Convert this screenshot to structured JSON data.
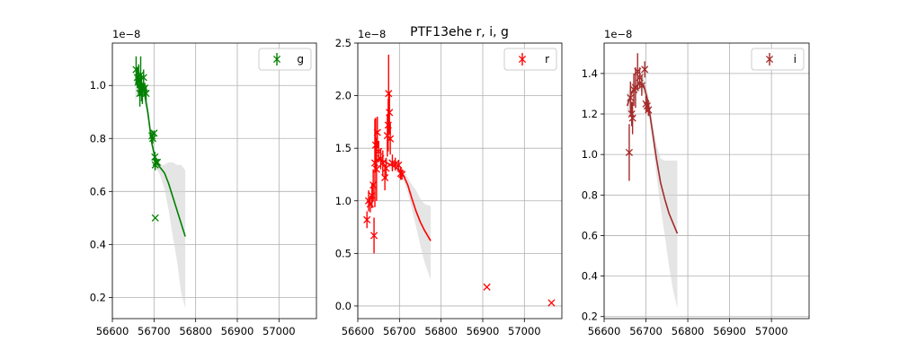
{
  "figure_title": "PTF13ehe  r, i, g",
  "chart_data": [
    {
      "type": "scatter",
      "band": "g",
      "color": "#008000",
      "offset_label": "1e−8",
      "xlim": [
        56600,
        57090
      ],
      "ylim": [
        0.12,
        1.16
      ],
      "xticks": [
        56600,
        56700,
        56800,
        56900,
        57000
      ],
      "xtick_labels": [
        "56600",
        "56700",
        "56800",
        "56900",
        "57000"
      ],
      "yticks": [
        0.2,
        0.4,
        0.6,
        0.8,
        1.0
      ],
      "ytick_labels": [
        "0.2",
        "0.4",
        "0.6",
        "0.8",
        "1.0"
      ],
      "legend": {
        "label": "g",
        "position": "top-right"
      },
      "grid": true,
      "points": [
        {
          "x": 56657,
          "y": 1.06,
          "err": 0.05
        },
        {
          "x": 56660,
          "y": 1.03,
          "err": 0.04
        },
        {
          "x": 56663,
          "y": 1.02,
          "err": 0.06
        },
        {
          "x": 56666,
          "y": 0.97,
          "err": 0.05
        },
        {
          "x": 56668,
          "y": 1.04,
          "err": 0.07
        },
        {
          "x": 56670,
          "y": 0.99,
          "err": 0.05
        },
        {
          "x": 56672,
          "y": 0.97,
          "err": 0.04
        },
        {
          "x": 56675,
          "y": 1.03,
          "err": 0.03
        },
        {
          "x": 56678,
          "y": 0.99,
          "err": 0.02
        },
        {
          "x": 56681,
          "y": 0.97,
          "err": 0.03
        },
        {
          "x": 56695,
          "y": 0.81,
          "err": 0.02
        },
        {
          "x": 56697,
          "y": 0.8,
          "err": 0.02
        },
        {
          "x": 56700,
          "y": 0.82,
          "err": 0.01
        },
        {
          "x": 56702,
          "y": 0.73,
          "err": 0.02
        },
        {
          "x": 56703,
          "y": 0.7,
          "err": 0.02
        },
        {
          "x": 56705,
          "y": 0.71,
          "err": 0.01
        },
        {
          "x": 56708,
          "y": 0.71,
          "err": 0.01
        },
        {
          "x": 56703,
          "y": 0.5,
          "err": 0
        }
      ],
      "fit": {
        "x": [
          56655,
          56665,
          56675,
          56685,
          56695,
          56705,
          56715,
          56725,
          56735,
          56745,
          56755,
          56765,
          56775
        ],
        "y": [
          1.0,
          1.03,
          0.99,
          0.9,
          0.78,
          0.71,
          0.69,
          0.67,
          0.63,
          0.58,
          0.53,
          0.48,
          0.43
        ],
        "lower": [
          0.94,
          0.99,
          0.96,
          0.87,
          0.76,
          0.69,
          0.66,
          0.61,
          0.53,
          0.43,
          0.34,
          0.22,
          0.16
        ],
        "upper": [
          1.06,
          1.06,
          1.02,
          0.93,
          0.8,
          0.72,
          0.7,
          0.7,
          0.71,
          0.71,
          0.7,
          0.7,
          0.68
        ]
      }
    },
    {
      "type": "scatter",
      "band": "r",
      "color": "#ff0000",
      "offset_label": "1e−8",
      "xlim": [
        56600,
        57090
      ],
      "ylim": [
        -0.12,
        2.5
      ],
      "xticks": [
        56600,
        56700,
        56800,
        56900,
        57000
      ],
      "xtick_labels": [
        "56600",
        "56700",
        "56800",
        "56900",
        "57000"
      ],
      "yticks": [
        0.0,
        0.5,
        1.0,
        1.5,
        2.0,
        2.5
      ],
      "ytick_labels": [
        "0.0",
        "0.5",
        "1.0",
        "1.5",
        "2.0",
        "2.5"
      ],
      "legend": {
        "label": "r",
        "position": "top-right"
      },
      "grid": true,
      "points": [
        {
          "x": 56622,
          "y": 0.82,
          "err": 0.08
        },
        {
          "x": 56626,
          "y": 1.0,
          "err": 0.1
        },
        {
          "x": 56630,
          "y": 0.97,
          "err": 0.08
        },
        {
          "x": 56634,
          "y": 1.05,
          "err": 0.12
        },
        {
          "x": 56637,
          "y": 1.15,
          "err": 0.15
        },
        {
          "x": 56639,
          "y": 0.67,
          "err": 0.17
        },
        {
          "x": 56641,
          "y": 1.36,
          "err": 0.42
        },
        {
          "x": 56643,
          "y": 1.53,
          "err": 0.26
        },
        {
          "x": 56645,
          "y": 1.3,
          "err": 0.3
        },
        {
          "x": 56647,
          "y": 1.65,
          "err": 0.15
        },
        {
          "x": 56650,
          "y": 1.47,
          "err": 0.1
        },
        {
          "x": 56655,
          "y": 1.4,
          "err": 0.1
        },
        {
          "x": 56660,
          "y": 1.36,
          "err": 0.12
        },
        {
          "x": 56665,
          "y": 1.22,
          "err": 0.12
        },
        {
          "x": 56668,
          "y": 1.31,
          "err": 0.1
        },
        {
          "x": 56671,
          "y": 1.62,
          "err": 0.2
        },
        {
          "x": 56673,
          "y": 1.72,
          "err": 0.25
        },
        {
          "x": 56674,
          "y": 2.02,
          "err": 0.37
        },
        {
          "x": 56676,
          "y": 1.84,
          "err": 0.2
        },
        {
          "x": 56678,
          "y": 1.59,
          "err": 0.15
        },
        {
          "x": 56683,
          "y": 1.36,
          "err": 0.08
        },
        {
          "x": 56690,
          "y": 1.35,
          "err": 0.06
        },
        {
          "x": 56698,
          "y": 1.34,
          "err": 0.05
        },
        {
          "x": 56703,
          "y": 1.26,
          "err": 0.06
        },
        {
          "x": 56706,
          "y": 1.25,
          "err": 0.05
        },
        {
          "x": 56910,
          "y": 0.18,
          "err": 0
        },
        {
          "x": 57065,
          "y": 0.03,
          "err": 0
        }
      ],
      "fit": {
        "x": [
          56640,
          56650,
          56660,
          56670,
          56680,
          56690,
          56700,
          56710,
          56720,
          56730,
          56740,
          56750,
          56760,
          56775
        ],
        "y": [
          1.36,
          1.4,
          1.38,
          1.36,
          1.34,
          1.32,
          1.29,
          1.24,
          1.15,
          1.02,
          0.9,
          0.8,
          0.72,
          0.62
        ],
        "lower": [
          1.3,
          1.35,
          1.34,
          1.32,
          1.3,
          1.28,
          1.25,
          1.19,
          1.08,
          0.92,
          0.75,
          0.58,
          0.42,
          0.25
        ],
        "upper": [
          1.42,
          1.45,
          1.42,
          1.4,
          1.38,
          1.36,
          1.33,
          1.29,
          1.22,
          1.15,
          1.1,
          1.02,
          0.97,
          0.95
        ]
      }
    },
    {
      "type": "scatter",
      "band": "i",
      "color": "#a52a2a",
      "offset_label": "1e−8",
      "xlim": [
        56600,
        57090
      ],
      "ylim": [
        0.19,
        1.55
      ],
      "xticks": [
        56600,
        56700,
        56800,
        56900,
        57000
      ],
      "xtick_labels": [
        "56600",
        "56700",
        "56800",
        "56900",
        "57000"
      ],
      "yticks": [
        0.2,
        0.4,
        0.6,
        0.8,
        1.0,
        1.2,
        1.4
      ],
      "ytick_labels": [
        "0.2",
        "0.4",
        "0.6",
        "0.8",
        "1.0",
        "1.2",
        "1.4"
      ],
      "legend": {
        "label": "i",
        "position": "top-right"
      },
      "grid": true,
      "points": [
        {
          "x": 56660,
          "y": 1.01,
          "err": 0.14
        },
        {
          "x": 56663,
          "y": 1.28,
          "err": 0.08
        },
        {
          "x": 56666,
          "y": 1.2,
          "err": 0.06
        },
        {
          "x": 56668,
          "y": 1.18,
          "err": 0.08
        },
        {
          "x": 56671,
          "y": 1.32,
          "err": 0.08
        },
        {
          "x": 56675,
          "y": 1.33,
          "err": 0.1
        },
        {
          "x": 56680,
          "y": 1.41,
          "err": 0.09
        },
        {
          "x": 56685,
          "y": 1.38,
          "err": 0.05
        },
        {
          "x": 56690,
          "y": 1.34,
          "err": 0.05
        },
        {
          "x": 56697,
          "y": 1.42,
          "err": 0.04
        },
        {
          "x": 56700,
          "y": 1.25,
          "err": 0.04
        },
        {
          "x": 56703,
          "y": 1.24,
          "err": 0.03
        },
        {
          "x": 56706,
          "y": 1.22,
          "err": 0.03
        }
      ],
      "fit": {
        "x": [
          56655,
          56665,
          56675,
          56685,
          56695,
          56705,
          56715,
          56725,
          56735,
          56745,
          56755,
          56765,
          56775
        ],
        "y": [
          1.24,
          1.3,
          1.33,
          1.36,
          1.34,
          1.26,
          1.12,
          0.98,
          0.86,
          0.78,
          0.71,
          0.66,
          0.61
        ],
        "lower": [
          1.18,
          1.25,
          1.29,
          1.32,
          1.3,
          1.22,
          1.08,
          0.9,
          0.74,
          0.6,
          0.45,
          0.33,
          0.24
        ],
        "upper": [
          1.3,
          1.35,
          1.37,
          1.4,
          1.38,
          1.3,
          1.17,
          1.05,
          0.98,
          0.97,
          0.97,
          0.97,
          0.97
        ]
      }
    }
  ]
}
